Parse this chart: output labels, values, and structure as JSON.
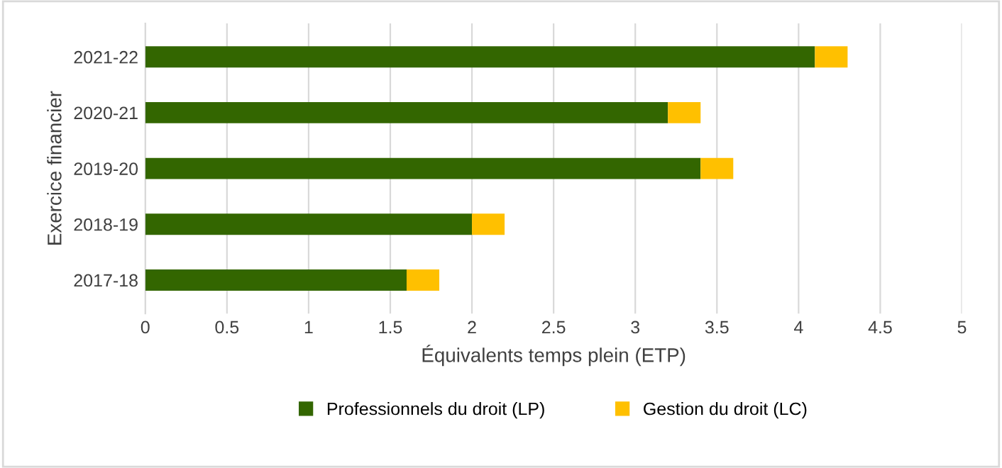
{
  "chart_data": {
    "type": "bar",
    "orientation": "horizontal",
    "stacked": true,
    "xlabel": "Équivalents temps plein (ETP)",
    "ylabel": "Exercice financier",
    "categories": [
      "2021-22",
      "2020-21",
      "2019-20",
      "2018-19",
      "2017-18"
    ],
    "series": [
      {
        "name": "Professionnels du droit (LP)",
        "color": "#336600",
        "values": [
          4.1,
          3.2,
          3.4,
          2.0,
          1.6
        ]
      },
      {
        "name": "Gestion du droit (LC)",
        "color": "#ffc000",
        "values": [
          0.2,
          0.2,
          0.2,
          0.2,
          0.2
        ]
      }
    ],
    "xlim": [
      0,
      5
    ],
    "xticks": [
      0,
      0.5,
      1,
      1.5,
      2,
      2.5,
      3,
      3.5,
      4,
      4.5,
      5
    ],
    "grid": "x",
    "legend": "bottom"
  }
}
